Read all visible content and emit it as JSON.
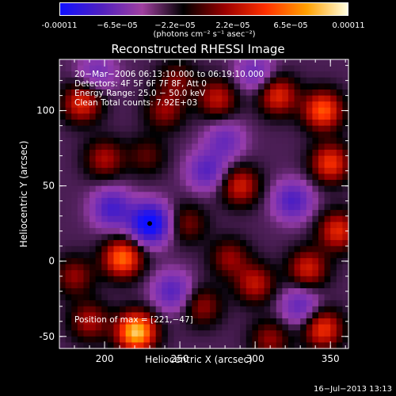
{
  "title": "Reconstructed RHESSI Image",
  "colorbar": {
    "ticks": [
      "-0.00011",
      "−6.5e−05",
      "−2.2e−05",
      "2.2e−05",
      "6.5e−05",
      "0.00011"
    ],
    "units": "(photons cm⁻² s⁻¹ asec⁻²)",
    "colors": [
      "#1010ff",
      "#5020c0",
      "#a040a0",
      "#000000",
      "#9a0000",
      "#ff3000",
      "#ffa000",
      "#ffffe0"
    ]
  },
  "annotations": {
    "time": "20−Mar−2006 06:13:10.000 to 06:19:10.000",
    "detectors": "Detectors: 4F 5F 6F 7F 8F, Att 0",
    "energy": "Energy Range: 25.0 − 50.0 keV",
    "algorithm": "Clean    Total counts: 7.92E+03",
    "position": "Position of max = [221,−47]"
  },
  "date": "16−Jul−2013 13:13",
  "chart_data": {
    "type": "heatmap",
    "title": "Reconstructed RHESSI Image",
    "xlabel": "Heliocentric X (arcsec)",
    "ylabel": "Heliocentric Y (arcsec)",
    "xlim": [
      170,
      362
    ],
    "ylim": [
      -58,
      134
    ],
    "xticks": [
      200,
      250,
      300,
      350
    ],
    "yticks": [
      -50,
      0,
      50,
      100
    ],
    "zlim": [
      -0.00011,
      0.00011
    ],
    "center_marker": [
      230,
      25
    ],
    "max_position": [
      221,
      -47
    ],
    "blobs": [
      {
        "x": 221,
        "y": -47,
        "w": 1.0
      },
      {
        "x": 212,
        "y": 2,
        "w": 0.75
      },
      {
        "x": 185,
        "y": 105,
        "w": 0.55
      },
      {
        "x": 200,
        "y": 68,
        "w": 0.4
      },
      {
        "x": 240,
        "y": 100,
        "w": 0.35
      },
      {
        "x": 228,
        "y": 70,
        "w": 0.25
      },
      {
        "x": 180,
        "y": -10,
        "w": 0.35
      },
      {
        "x": 248,
        "y": 120,
        "w": 0.3
      },
      {
        "x": 275,
        "y": 108,
        "w": 0.45
      },
      {
        "x": 265,
        "y": -30,
        "w": 0.35
      },
      {
        "x": 290,
        "y": 50,
        "w": 0.5
      },
      {
        "x": 300,
        "y": -15,
        "w": 0.45
      },
      {
        "x": 310,
        "y": -52,
        "w": 0.35
      },
      {
        "x": 315,
        "y": 110,
        "w": 0.55
      },
      {
        "x": 345,
        "y": 100,
        "w": 0.7
      },
      {
        "x": 350,
        "y": 65,
        "w": 0.6
      },
      {
        "x": 355,
        "y": 20,
        "w": 0.55
      },
      {
        "x": 335,
        "y": -5,
        "w": 0.5
      },
      {
        "x": 345,
        "y": -45,
        "w": 0.6
      },
      {
        "x": 255,
        "y": 25,
        "w": 0.3
      },
      {
        "x": 283,
        "y": 2,
        "w": 0.35
      },
      {
        "x": 190,
        "y": -40,
        "w": 0.4
      },
      {
        "x": 230,
        "y": 25,
        "w": -1.0
      },
      {
        "x": 205,
        "y": 35,
        "w": -0.55
      },
      {
        "x": 268,
        "y": 60,
        "w": -0.45
      },
      {
        "x": 325,
        "y": 40,
        "w": -0.5
      },
      {
        "x": 245,
        "y": -20,
        "w": -0.45
      },
      {
        "x": 280,
        "y": 80,
        "w": -0.35
      },
      {
        "x": 330,
        "y": -30,
        "w": -0.4
      },
      {
        "x": 195,
        "y": 125,
        "w": -0.3
      },
      {
        "x": 300,
        "y": 125,
        "w": -0.35
      }
    ]
  }
}
